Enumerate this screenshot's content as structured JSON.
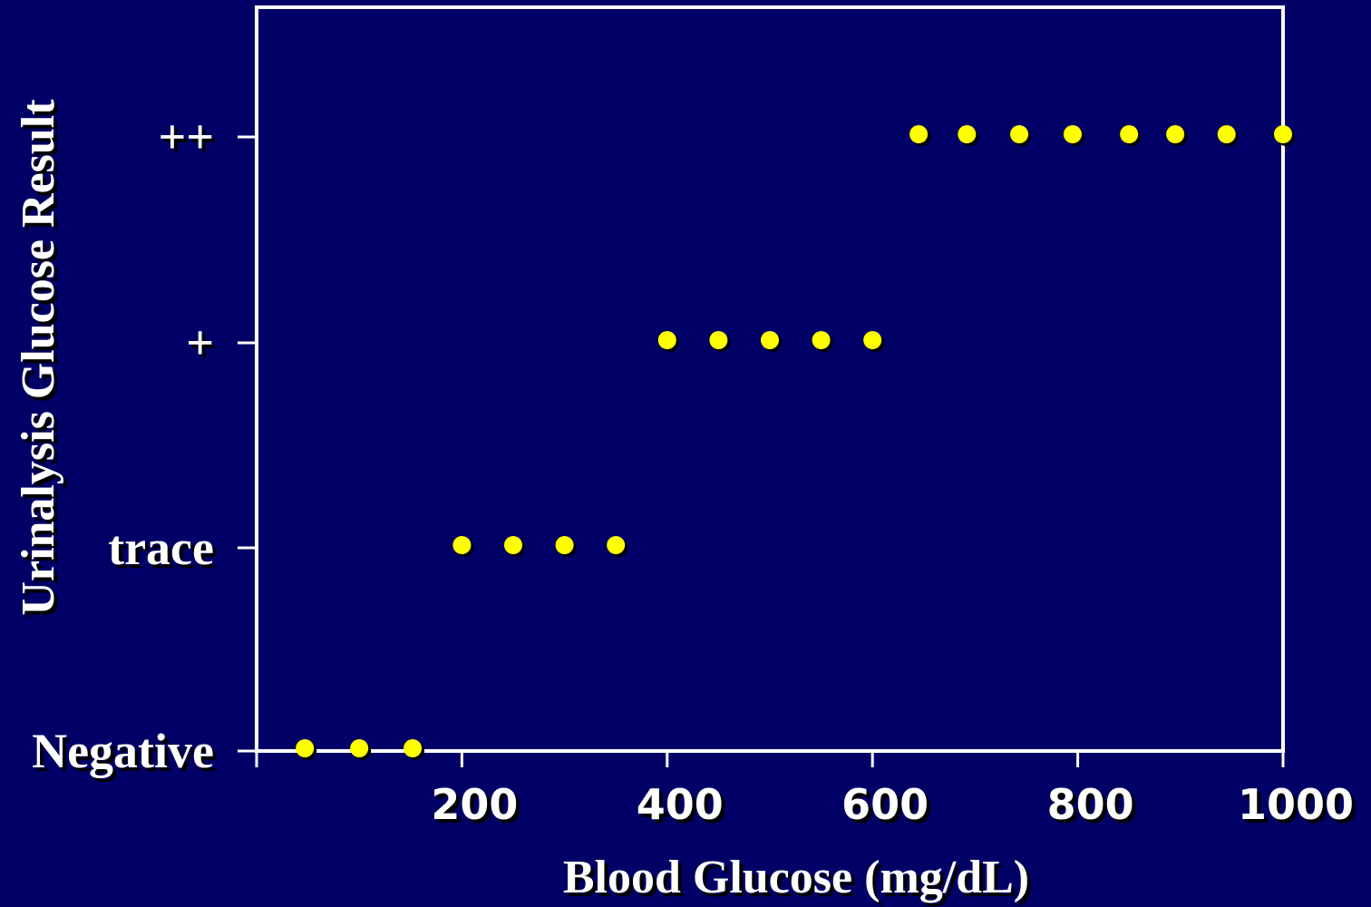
{
  "chart_data": {
    "type": "scatter",
    "title": "",
    "xlabel": "Blood Glucose (mg/dL)",
    "ylabel": "Urinalysis Glucose Result",
    "xlim": [
      0,
      1000
    ],
    "x_ticks": [
      200,
      400,
      600,
      800,
      1000
    ],
    "y_categories": [
      "Negative",
      "trace",
      "+",
      "++"
    ],
    "grid": false,
    "colors": {
      "background": "#000066",
      "point": "#ffff00",
      "axes": "#ffffff"
    },
    "series": [
      {
        "points": [
          {
            "x": 47,
            "y": "Negative"
          },
          {
            "x": 100,
            "y": "Negative"
          },
          {
            "x": 152,
            "y": "Negative"
          },
          {
            "x": 200,
            "y": "trace"
          },
          {
            "x": 250,
            "y": "trace"
          },
          {
            "x": 300,
            "y": "trace"
          },
          {
            "x": 350,
            "y": "trace"
          },
          {
            "x": 400,
            "y": "+"
          },
          {
            "x": 450,
            "y": "+"
          },
          {
            "x": 500,
            "y": "+"
          },
          {
            "x": 550,
            "y": "+"
          },
          {
            "x": 600,
            "y": "+"
          },
          {
            "x": 645,
            "y": "++"
          },
          {
            "x": 692,
            "y": "++"
          },
          {
            "x": 743,
            "y": "++"
          },
          {
            "x": 795,
            "y": "++"
          },
          {
            "x": 850,
            "y": "++"
          },
          {
            "x": 895,
            "y": "++"
          },
          {
            "x": 945,
            "y": "++"
          },
          {
            "x": 1000,
            "y": "++"
          }
        ]
      }
    ]
  }
}
